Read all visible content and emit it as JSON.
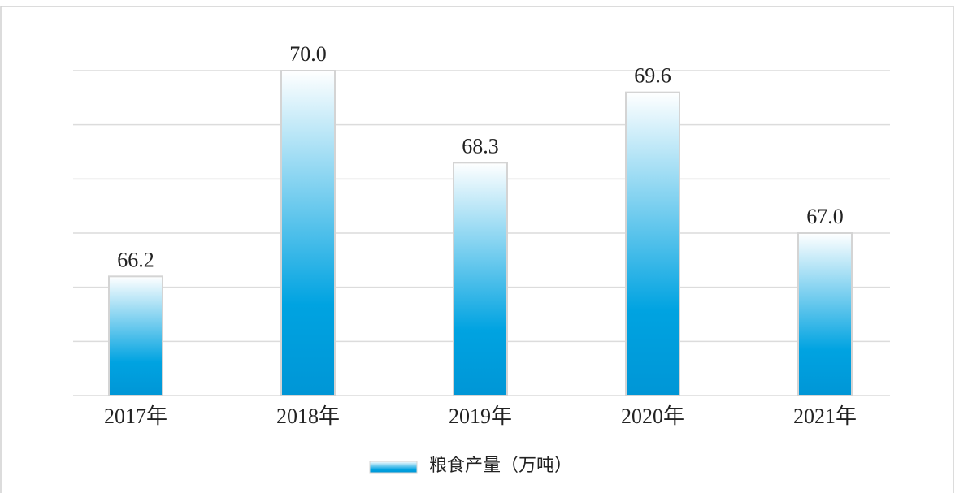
{
  "chart_data": {
    "type": "bar",
    "categories": [
      "2017年",
      "2018年",
      "2019年",
      "2020年",
      "2021年"
    ],
    "series": [
      {
        "name": "粮食产量（万吨）",
        "color": "#00a0e0",
        "values": [
          66.2,
          70.0,
          68.3,
          69.6,
          67.0
        ],
        "value_labels": [
          "66.2",
          "70.0",
          "68.3",
          "69.6",
          "67.0"
        ]
      }
    ],
    "ylim": [
      64,
      70
    ],
    "yticks": [
      64,
      65,
      66,
      67,
      68,
      69,
      70
    ],
    "show_ytick_labels": false,
    "grid": true,
    "legend": "bottom"
  }
}
